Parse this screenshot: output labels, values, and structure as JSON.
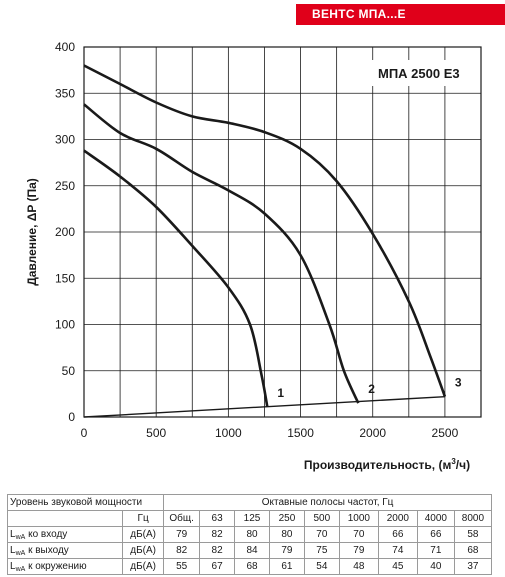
{
  "brand": {
    "label": "ВЕНТС МПА...Е"
  },
  "chart_data": {
    "type": "line",
    "title": "МПА 2500 Е3",
    "xlabel": "Производительность, (м³/ч)",
    "xlabel_main": "Производительность, (м",
    "xlabel_sup": "3",
    "xlabel_end": "/ч)",
    "ylabel": "Давление, ΔP (Па)",
    "xlim": [
      0,
      2750
    ],
    "ylim": [
      0,
      400
    ],
    "xticks": [
      0,
      500,
      1000,
      1500,
      2000,
      2500
    ],
    "yticks": [
      0,
      50,
      100,
      150,
      200,
      250,
      300,
      350,
      400
    ],
    "grid": true,
    "series": [
      {
        "name": "1",
        "points": [
          [
            0,
            288
          ],
          [
            250,
            260
          ],
          [
            500,
            227
          ],
          [
            750,
            185
          ],
          [
            1000,
            140
          ],
          [
            1150,
            100
          ],
          [
            1230,
            45
          ],
          [
            1270,
            11
          ]
        ]
      },
      {
        "name": "2",
        "points": [
          [
            0,
            338
          ],
          [
            250,
            307
          ],
          [
            500,
            290
          ],
          [
            750,
            265
          ],
          [
            1000,
            245
          ],
          [
            1250,
            220
          ],
          [
            1500,
            175
          ],
          [
            1700,
            100
          ],
          [
            1800,
            50
          ],
          [
            1900,
            15
          ]
        ]
      },
      {
        "name": "3",
        "points": [
          [
            0,
            380
          ],
          [
            250,
            360
          ],
          [
            500,
            340
          ],
          [
            750,
            325
          ],
          [
            1000,
            318
          ],
          [
            1250,
            308
          ],
          [
            1500,
            290
          ],
          [
            1750,
            255
          ],
          [
            2000,
            198
          ],
          [
            2250,
            125
          ],
          [
            2400,
            65
          ],
          [
            2500,
            22
          ]
        ]
      }
    ],
    "system_line": [
      [
        0,
        0
      ],
      [
        2500,
        22
      ]
    ]
  },
  "table": {
    "title": "Уровень звуковой мощности",
    "bands_title": "Октавные полосы частот, Гц",
    "unit_hz": "Гц",
    "headers": [
      "Общ.",
      "63",
      "125",
      "250",
      "500",
      "1000",
      "2000",
      "4000",
      "8000"
    ],
    "rows": [
      {
        "label_base": "L",
        "label_sub": "wA",
        "label_rest": " ко входу",
        "unit": "дБ(А)",
        "values": [
          "79",
          "82",
          "80",
          "80",
          "70",
          "70",
          "66",
          "66",
          "58"
        ]
      },
      {
        "label_base": "L",
        "label_sub": "wA",
        "label_rest": " к выходу",
        "unit": "дБ(А)",
        "values": [
          "82",
          "82",
          "84",
          "79",
          "75",
          "79",
          "74",
          "71",
          "68"
        ]
      },
      {
        "label_base": "L",
        "label_sub": "wA",
        "label_rest": " к окружению",
        "unit": "дБ(А)",
        "values": [
          "55",
          "67",
          "68",
          "61",
          "54",
          "48",
          "45",
          "40",
          "37"
        ]
      }
    ]
  }
}
